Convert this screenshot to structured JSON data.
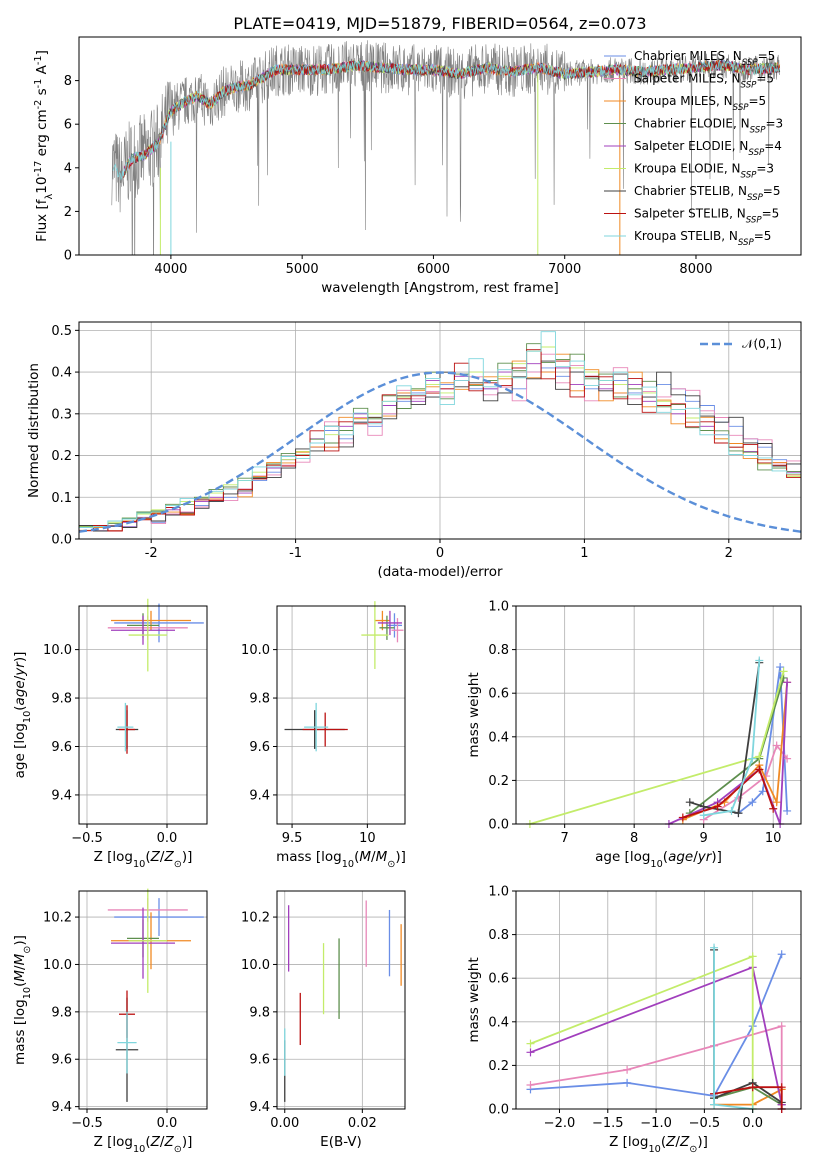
{
  "colors": {
    "series": [
      "#6a8ee6",
      "#e887b9",
      "#f08a24",
      "#5e8f4e",
      "#a13fbd",
      "#c3ec6a",
      "#3f3f3f",
      "#bb1111",
      "#7fd6dd"
    ],
    "observed": "#808080",
    "normal": "#5b8fd8"
  },
  "series_names": [
    "Chabrier MILES, N$_{SSP}$=5",
    "Salpeter MILES, N$_{SSP}$=5",
    "Kroupa MILES, N$_{SSP}$=5",
    "Chabrier ELODIE, N$_{SSP}$=3",
    "Salpeter ELODIE, N$_{SSP}$=4",
    "Kroupa ELODIE, N$_{SSP}$=3",
    "Chabrier STELIB, N$_{SSP}$=5",
    "Salpeter STELIB, N$_{SSP}$=5",
    "Kroupa STELIB, N$_{SSP}$=5"
  ],
  "chart_data": [
    {
      "id": "spectrum",
      "type": "line",
      "title": "PLATE=0419, MJD=51879, FIBERID=0564, z=0.073",
      "xlabel": "wavelength [Angstrom, rest frame]",
      "ylabel": "Flux [f$_\\lambda$10$^{-17}$ erg cm$^{-2}$ s$^{-1}$ A$^{-1}$]",
      "xlim": [
        3300,
        8800
      ],
      "ylim": [
        0,
        10
      ],
      "xticks": [
        4000,
        5000,
        6000,
        7000,
        8000
      ],
      "yticks": [
        0,
        2,
        4,
        6,
        8
      ],
      "continuum": {
        "x": [
          3550,
          3620,
          3700,
          3800,
          3900,
          4000,
          4100,
          4200,
          4300,
          4400,
          4500,
          4600,
          4800,
          5000,
          5200,
          5400,
          5600,
          5800,
          6000,
          6200,
          6400,
          6600,
          6800,
          7000,
          7200,
          7400,
          7600,
          7800,
          8000,
          8200,
          8400,
          8600
        ],
        "y": [
          4.2,
          3.6,
          4.4,
          4.6,
          5.1,
          6.6,
          7.0,
          7.3,
          6.9,
          7.5,
          7.7,
          7.8,
          8.5,
          8.5,
          8.5,
          8.7,
          8.6,
          8.5,
          8.5,
          8.3,
          8.6,
          8.4,
          8.6,
          8.3,
          8.4,
          8.5,
          8.4,
          8.5,
          8.6,
          8.7,
          8.5,
          8.6
        ]
      },
      "legend_loc": "upper right"
    },
    {
      "id": "residuals",
      "type": "histogram",
      "xlabel": "(data-model)/error",
      "ylabel": "Normed distribution",
      "xlim": [
        -2.5,
        2.5
      ],
      "ylim": [
        0,
        0.52
      ],
      "xticks": [
        -2,
        -1,
        0,
        1,
        2
      ],
      "yticks": [
        0.0,
        0.1,
        0.2,
        0.3,
        0.4,
        0.5
      ],
      "bin_width": 0.1,
      "bin_start": -2.5,
      "series": [
        {
          "values": [
            0.03,
            0.02,
            0.03,
            0.03,
            0.05,
            0.04,
            0.06,
            0.06,
            0.08,
            0.09,
            0.1,
            0.12,
            0.14,
            0.16,
            0.17,
            0.2,
            0.22,
            0.26,
            0.24,
            0.28,
            0.27,
            0.3,
            0.33,
            0.35,
            0.34,
            0.37,
            0.38,
            0.36,
            0.36,
            0.35,
            0.36,
            0.4,
            0.41,
            0.39,
            0.4,
            0.36,
            0.37,
            0.38,
            0.35,
            0.34,
            0.37,
            0.36,
            0.33,
            0.32,
            0.28,
            0.27,
            0.24,
            0.22,
            0.19,
            0.18
          ]
        },
        {
          "values": [
            0.02,
            0.03,
            0.02,
            0.04,
            0.05,
            0.06,
            0.07,
            0.06,
            0.09,
            0.1,
            0.12,
            0.11,
            0.15,
            0.17,
            0.19,
            0.2,
            0.24,
            0.22,
            0.27,
            0.3,
            0.28,
            0.32,
            0.35,
            0.33,
            0.38,
            0.36,
            0.39,
            0.37,
            0.36,
            0.4,
            0.41,
            0.42,
            0.4,
            0.41,
            0.37,
            0.39,
            0.36,
            0.35,
            0.37,
            0.33,
            0.32,
            0.3,
            0.28,
            0.27,
            0.25,
            0.22,
            0.21,
            0.19,
            0.17,
            0.16
          ]
        },
        {
          "values": [
            0.03,
            0.03,
            0.04,
            0.05,
            0.06,
            0.07,
            0.08,
            0.09,
            0.1,
            0.11,
            0.13,
            0.14,
            0.16,
            0.18,
            0.19,
            0.21,
            0.23,
            0.25,
            0.26,
            0.29,
            0.3,
            0.33,
            0.34,
            0.36,
            0.37,
            0.35,
            0.38,
            0.4,
            0.38,
            0.39,
            0.42,
            0.45,
            0.46,
            0.43,
            0.41,
            0.4,
            0.38,
            0.37,
            0.36,
            0.35,
            0.33,
            0.31,
            0.29,
            0.26,
            0.24,
            0.22,
            0.2,
            0.18,
            0.17,
            0.15
          ]
        }
      ],
      "normal_label": "$\\mathcal{N}(0,1)$"
    },
    {
      "id": "age_vs_Z",
      "type": "errorbar",
      "xlabel": "Z [log$_{10}$($Z$/$Z_\\odot$)]",
      "ylabel": "age  [log$_{10}$($age$/$yr$)]",
      "xlim": [
        -0.55,
        0.25
      ],
      "ylim": [
        9.28,
        10.18
      ],
      "xticks": [
        -0.5,
        0.0
      ],
      "xticklabels": [
        "−0.5",
        "0.0"
      ],
      "yticks": [
        9.4,
        9.6,
        9.8,
        10.0
      ],
      "points": [
        {
          "x": -0.05,
          "y": 10.11,
          "xerr": 0.28,
          "yerr": 0.08
        },
        {
          "x": -0.12,
          "y": 10.09,
          "xerr": 0.25,
          "yerr": 0.05
        },
        {
          "x": -0.1,
          "y": 10.12,
          "xerr": 0.25,
          "yerr": 0.04
        },
        {
          "x": -0.15,
          "y": 10.1,
          "xerr": 0.1,
          "yerr": 0.05
        },
        {
          "x": -0.15,
          "y": 10.08,
          "xerr": 0.2,
          "yerr": 0.06
        },
        {
          "x": -0.12,
          "y": 10.06,
          "xerr": 0.12,
          "yerr": 0.15
        },
        {
          "x": -0.25,
          "y": 9.67,
          "xerr": 0.07,
          "yerr": 0.08
        },
        {
          "x": -0.25,
          "y": 9.67,
          "xerr": 0.05,
          "yerr": 0.1
        },
        {
          "x": -0.26,
          "y": 9.68,
          "xerr": 0.05,
          "yerr": 0.1
        }
      ]
    },
    {
      "id": "age_vs_mass",
      "type": "errorbar",
      "xlabel": "mass [log$_{10}$($M$/$M_\\odot$)]",
      "xlim": [
        9.4,
        10.25
      ],
      "ylim": [
        9.28,
        10.18
      ],
      "xticks": [
        9.5,
        10.0
      ],
      "yticks": [
        9.4,
        9.6,
        9.8,
        10.0
      ],
      "points": [
        {
          "x": 10.18,
          "y": 10.1,
          "xerr": 0.05,
          "yerr": 0.05
        },
        {
          "x": 10.2,
          "y": 10.08,
          "xerr": 0.04,
          "yerr": 0.05
        },
        {
          "x": 10.1,
          "y": 10.12,
          "xerr": 0.05,
          "yerr": 0.04
        },
        {
          "x": 10.13,
          "y": 10.09,
          "xerr": 0.05,
          "yerr": 0.05
        },
        {
          "x": 10.15,
          "y": 10.11,
          "xerr": 0.08,
          "yerr": 0.05
        },
        {
          "x": 10.05,
          "y": 10.06,
          "xerr": 0.09,
          "yerr": 0.14
        },
        {
          "x": 9.65,
          "y": 9.67,
          "xerr": 0.2,
          "yerr": 0.08
        },
        {
          "x": 9.72,
          "y": 9.67,
          "xerr": 0.15,
          "yerr": 0.07
        },
        {
          "x": 9.66,
          "y": 9.68,
          "xerr": 0.08,
          "yerr": 0.1
        }
      ]
    },
    {
      "id": "weight_vs_age",
      "type": "line",
      "xlabel": "age  [log$_{10}$($age$/$yr$)]",
      "ylabel": "mass weight",
      "xlim": [
        6.3,
        10.4
      ],
      "ylim": [
        0,
        1
      ],
      "xticks": [
        7,
        8,
        9,
        10
      ],
      "yticks": [
        0.0,
        0.2,
        0.4,
        0.6,
        0.8,
        1.0
      ],
      "series": [
        {
          "x": [
            9.5,
            9.7,
            9.85,
            10.1,
            10.2
          ],
          "y": [
            0.05,
            0.1,
            0.15,
            0.72,
            0.06
          ]
        },
        {
          "x": [
            9.0,
            9.5,
            9.9,
            10.05,
            10.2
          ],
          "y": [
            0.02,
            0.12,
            0.22,
            0.36,
            0.3
          ]
        },
        {
          "x": [
            8.7,
            9.3,
            9.8,
            10.05,
            10.2
          ],
          "y": [
            0.02,
            0.1,
            0.27,
            0.1,
            0.65
          ]
        },
        {
          "x": [
            8.8,
            9.8,
            10.15
          ],
          "y": [
            0.05,
            0.3,
            0.67
          ]
        },
        {
          "x": [
            8.5,
            9.2,
            9.8,
            10.1,
            10.2
          ],
          "y": [
            0.0,
            0.1,
            0.25,
            0.0,
            0.65
          ]
        },
        {
          "x": [
            6.5,
            9.8,
            10.15
          ],
          "y": [
            0.0,
            0.31,
            0.7
          ]
        },
        {
          "x": [
            8.8,
            9.0,
            9.5,
            9.8
          ],
          "y": [
            0.1,
            0.08,
            0.05,
            0.74
          ]
        },
        {
          "x": [
            8.7,
            9.2,
            9.8,
            10.0
          ],
          "y": [
            0.03,
            0.08,
            0.25,
            0.07
          ]
        },
        {
          "x": [
            9.0,
            9.4,
            9.7,
            9.8
          ],
          "y": [
            0.04,
            0.06,
            0.3,
            0.75
          ]
        }
      ]
    },
    {
      "id": "mass_vs_Z",
      "type": "errorbar",
      "xlabel": "Z [log$_{10}$($Z$/$Z_\\odot$)]",
      "ylabel": "mass [log$_{10}$($M$/$M_\\odot$)]",
      "xlim": [
        -0.55,
        0.25
      ],
      "ylim": [
        9.39,
        10.31
      ],
      "xticks": [
        -0.5,
        0.0
      ],
      "xticklabels": [
        "−0.5",
        "0.0"
      ],
      "yticks": [
        9.4,
        9.6,
        9.8,
        10.0,
        10.2
      ],
      "points": [
        {
          "x": -0.05,
          "y": 10.2,
          "xerr": 0.28,
          "yerr": 0.08
        },
        {
          "x": -0.12,
          "y": 10.23,
          "xerr": 0.25,
          "yerr": 0.05
        },
        {
          "x": -0.1,
          "y": 10.1,
          "xerr": 0.25,
          "yerr": 0.12
        },
        {
          "x": -0.15,
          "y": 10.11,
          "xerr": 0.1,
          "yerr": 0.08
        },
        {
          "x": -0.15,
          "y": 10.09,
          "xerr": 0.2,
          "yerr": 0.15
        },
        {
          "x": -0.12,
          "y": 10.1,
          "xerr": 0.12,
          "yerr": 0.22
        },
        {
          "x": -0.25,
          "y": 9.64,
          "xerr": 0.07,
          "yerr": 0.22
        },
        {
          "x": -0.25,
          "y": 9.79,
          "xerr": 0.05,
          "yerr": 0.1
        },
        {
          "x": -0.25,
          "y": 9.67,
          "xerr": 0.06,
          "yerr": 0.13
        }
      ]
    },
    {
      "id": "mass_vs_ebv",
      "type": "errorbar",
      "xlabel": "E(B-V)",
      "xlim": [
        -0.002,
        0.031
      ],
      "ylim": [
        9.39,
        10.31
      ],
      "xticks": [
        0.0,
        0.02
      ],
      "xticklabels": [
        "0.00",
        "0.02"
      ],
      "yticks": [
        9.4,
        9.6,
        9.8,
        10.0,
        10.2
      ],
      "points": [
        {
          "x": 0.027,
          "y": 10.09,
          "yerr": 0.14
        },
        {
          "x": 0.021,
          "y": 10.13,
          "yerr": 0.14
        },
        {
          "x": 0.03,
          "y": 10.04,
          "yerr": 0.13
        },
        {
          "x": 0.014,
          "y": 9.94,
          "yerr": 0.17
        },
        {
          "x": 0.001,
          "y": 10.11,
          "yerr": 0.14
        },
        {
          "x": 0.01,
          "y": 9.94,
          "yerr": 0.15
        },
        {
          "x": 0.0,
          "y": 9.55,
          "yerr": 0.13
        },
        {
          "x": 0.004,
          "y": 9.77,
          "yerr": 0.11
        },
        {
          "x": 0.0,
          "y": 9.63,
          "yerr": 0.1
        }
      ]
    },
    {
      "id": "weight_vs_Z",
      "type": "line",
      "xlabel": "Z [log$_{10}$($Z$/$Z_\\odot$)]",
      "ylabel": "mass weight",
      "xlim": [
        -2.45,
        0.5
      ],
      "ylim": [
        0,
        1
      ],
      "xticks": [
        -2.0,
        -1.5,
        -1.0,
        -0.5,
        0.0
      ],
      "xticklabels": [
        "−2.0",
        "−1.5",
        "−1.0",
        "−0.5",
        "0.0"
      ],
      "yticks": [
        0.0,
        0.2,
        0.4,
        0.6,
        0.8,
        1.0
      ],
      "series": [
        {
          "x": [
            -2.3,
            -1.3,
            -0.4,
            0.0,
            0.3
          ],
          "y": [
            0.09,
            0.12,
            0.06,
            0.38,
            0.71
          ]
        },
        {
          "x": [
            -2.3,
            -1.3,
            -0.4,
            0.3,
            0.3
          ],
          "y": [
            0.11,
            0.18,
            0.29,
            0.38,
            0.02
          ]
        },
        {
          "x": [
            -0.4,
            0.0,
            0.3,
            0.3
          ],
          "y": [
            0.02,
            0.02,
            0.09,
            0.0
          ]
        },
        {
          "x": [
            -0.4,
            0.0,
            0.3
          ],
          "y": [
            0.05,
            0.1,
            0.02
          ]
        },
        {
          "x": [
            -2.3,
            0.0,
            0.3,
            0.3
          ],
          "y": [
            0.26,
            0.65,
            0.02,
            0.0
          ]
        },
        {
          "x": [
            -2.3,
            0.0,
            0.0
          ],
          "y": [
            0.3,
            0.7,
            0.0
          ]
        },
        {
          "x": [
            -0.4,
            -0.4,
            0.0,
            0.3
          ],
          "y": [
            0.73,
            0.05,
            0.12,
            0.03
          ]
        },
        {
          "x": [
            -0.4,
            0.0,
            0.3,
            0.3
          ],
          "y": [
            0.07,
            0.1,
            0.1,
            0.0
          ]
        },
        {
          "x": [
            -0.4,
            -0.4,
            0.0
          ],
          "y": [
            0.74,
            0.02,
            0.0
          ]
        }
      ]
    }
  ]
}
